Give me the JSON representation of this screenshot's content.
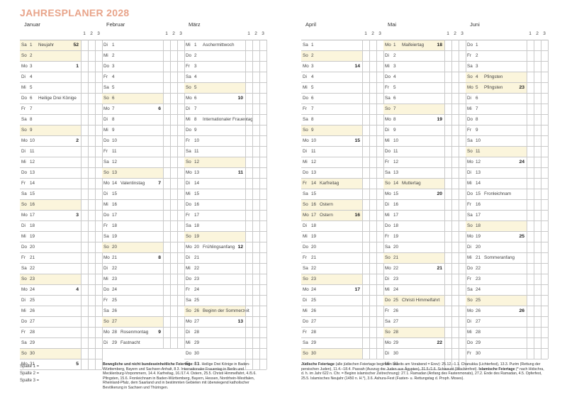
{
  "title": "JAHRESPLANER 2028",
  "col_headers": [
    "1",
    "2",
    "3"
  ],
  "months": [
    {
      "name": "Januar",
      "days": [
        {
          "wd": "Sa",
          "d": "1",
          "ev": "Neujahr",
          "kw": "52",
          "hl": true
        },
        {
          "wd": "So",
          "d": "2",
          "hl": true
        },
        {
          "wd": "Mo",
          "d": "3",
          "kw": "1"
        },
        {
          "wd": "Di",
          "d": "4"
        },
        {
          "wd": "Mi",
          "d": "5"
        },
        {
          "wd": "Do",
          "d": "6",
          "ev": "Heilige Drei Könige"
        },
        {
          "wd": "Fr",
          "d": "7"
        },
        {
          "wd": "Sa",
          "d": "8"
        },
        {
          "wd": "So",
          "d": "9",
          "hl": true
        },
        {
          "wd": "Mo",
          "d": "10",
          "kw": "2"
        },
        {
          "wd": "Di",
          "d": "11"
        },
        {
          "wd": "Mi",
          "d": "12"
        },
        {
          "wd": "Do",
          "d": "13"
        },
        {
          "wd": "Fr",
          "d": "14"
        },
        {
          "wd": "Sa",
          "d": "15"
        },
        {
          "wd": "So",
          "d": "16",
          "hl": true
        },
        {
          "wd": "Mo",
          "d": "17",
          "kw": "3"
        },
        {
          "wd": "Di",
          "d": "18"
        },
        {
          "wd": "Mi",
          "d": "19"
        },
        {
          "wd": "Do",
          "d": "20"
        },
        {
          "wd": "Fr",
          "d": "21"
        },
        {
          "wd": "Sa",
          "d": "22"
        },
        {
          "wd": "So",
          "d": "23",
          "hl": true
        },
        {
          "wd": "Mo",
          "d": "24",
          "kw": "4"
        },
        {
          "wd": "Di",
          "d": "25"
        },
        {
          "wd": "Mi",
          "d": "26"
        },
        {
          "wd": "Do",
          "d": "27"
        },
        {
          "wd": "Fr",
          "d": "28"
        },
        {
          "wd": "Sa",
          "d": "29"
        },
        {
          "wd": "So",
          "d": "30",
          "hl": true
        },
        {
          "wd": "Mo",
          "d": "31",
          "kw": "5"
        }
      ]
    },
    {
      "name": "Februar",
      "days": [
        {
          "wd": "Di",
          "d": "1"
        },
        {
          "wd": "Mi",
          "d": "2"
        },
        {
          "wd": "Do",
          "d": "3"
        },
        {
          "wd": "Fr",
          "d": "4"
        },
        {
          "wd": "Sa",
          "d": "5"
        },
        {
          "wd": "So",
          "d": "6",
          "hl": true
        },
        {
          "wd": "Mo",
          "d": "7",
          "kw": "6"
        },
        {
          "wd": "Di",
          "d": "8"
        },
        {
          "wd": "Mi",
          "d": "9"
        },
        {
          "wd": "Do",
          "d": "10"
        },
        {
          "wd": "Fr",
          "d": "11"
        },
        {
          "wd": "Sa",
          "d": "12"
        },
        {
          "wd": "So",
          "d": "13",
          "hl": true
        },
        {
          "wd": "Mo",
          "d": "14",
          "ev": "Valentinstag",
          "kw": "7"
        },
        {
          "wd": "Di",
          "d": "15"
        },
        {
          "wd": "Mi",
          "d": "16"
        },
        {
          "wd": "Do",
          "d": "17"
        },
        {
          "wd": "Fr",
          "d": "18"
        },
        {
          "wd": "Sa",
          "d": "19"
        },
        {
          "wd": "So",
          "d": "20",
          "hl": true
        },
        {
          "wd": "Mo",
          "d": "21",
          "kw": "8"
        },
        {
          "wd": "Di",
          "d": "22"
        },
        {
          "wd": "Mi",
          "d": "23"
        },
        {
          "wd": "Do",
          "d": "24"
        },
        {
          "wd": "Fr",
          "d": "25"
        },
        {
          "wd": "Sa",
          "d": "26"
        },
        {
          "wd": "So",
          "d": "27",
          "hl": true
        },
        {
          "wd": "Mo",
          "d": "28",
          "ev": "Rosenmontag",
          "kw": "9"
        },
        {
          "wd": "Di",
          "d": "29",
          "ev": "Fastnacht"
        }
      ]
    },
    {
      "name": "März",
      "days": [
        {
          "wd": "Mi",
          "d": "1",
          "ev": "Aschermittwoch"
        },
        {
          "wd": "Do",
          "d": "2"
        },
        {
          "wd": "Fr",
          "d": "3"
        },
        {
          "wd": "Sa",
          "d": "4"
        },
        {
          "wd": "So",
          "d": "5",
          "hl": true
        },
        {
          "wd": "Mo",
          "d": "6",
          "kw": "10"
        },
        {
          "wd": "Di",
          "d": "7"
        },
        {
          "wd": "Mi",
          "d": "8",
          "ev": "Internationaler Frauentag"
        },
        {
          "wd": "Do",
          "d": "9"
        },
        {
          "wd": "Fr",
          "d": "10"
        },
        {
          "wd": "Sa",
          "d": "11"
        },
        {
          "wd": "So",
          "d": "12",
          "hl": true
        },
        {
          "wd": "Mo",
          "d": "13",
          "kw": "11"
        },
        {
          "wd": "Di",
          "d": "14"
        },
        {
          "wd": "Mi",
          "d": "15"
        },
        {
          "wd": "Do",
          "d": "16"
        },
        {
          "wd": "Fr",
          "d": "17"
        },
        {
          "wd": "Sa",
          "d": "18"
        },
        {
          "wd": "So",
          "d": "19",
          "hl": true
        },
        {
          "wd": "Mo",
          "d": "20",
          "ev": "Frühlingsanfang",
          "kw": "12"
        },
        {
          "wd": "Di",
          "d": "21"
        },
        {
          "wd": "Mi",
          "d": "22"
        },
        {
          "wd": "Do",
          "d": "23"
        },
        {
          "wd": "Fr",
          "d": "24"
        },
        {
          "wd": "Sa",
          "d": "25"
        },
        {
          "wd": "So",
          "d": "26",
          "ev": "Beginn der Sommerzeit",
          "hl": true
        },
        {
          "wd": "Mo",
          "d": "27",
          "kw": "13"
        },
        {
          "wd": "Di",
          "d": "28"
        },
        {
          "wd": "Mi",
          "d": "29"
        },
        {
          "wd": "Do",
          "d": "30"
        },
        {
          "wd": "Fr",
          "d": "31"
        }
      ]
    },
    {
      "name": "April",
      "days": [
        {
          "wd": "Sa",
          "d": "1"
        },
        {
          "wd": "So",
          "d": "2",
          "hl": true
        },
        {
          "wd": "Mo",
          "d": "3",
          "kw": "14"
        },
        {
          "wd": "Di",
          "d": "4"
        },
        {
          "wd": "Mi",
          "d": "5"
        },
        {
          "wd": "Do",
          "d": "6"
        },
        {
          "wd": "Fr",
          "d": "7"
        },
        {
          "wd": "Sa",
          "d": "8"
        },
        {
          "wd": "So",
          "d": "9",
          "hl": true
        },
        {
          "wd": "Mo",
          "d": "10",
          "kw": "15"
        },
        {
          "wd": "Di",
          "d": "11"
        },
        {
          "wd": "Mi",
          "d": "12"
        },
        {
          "wd": "Do",
          "d": "13"
        },
        {
          "wd": "Fr",
          "d": "14",
          "ev": "Karfreitag",
          "hl": true
        },
        {
          "wd": "Sa",
          "d": "15"
        },
        {
          "wd": "So",
          "d": "16",
          "ev": "Ostern",
          "hl": true
        },
        {
          "wd": "Mo",
          "d": "17",
          "ev": "Ostern",
          "kw": "16",
          "hl": true
        },
        {
          "wd": "Di",
          "d": "18"
        },
        {
          "wd": "Mi",
          "d": "19"
        },
        {
          "wd": "Do",
          "d": "20"
        },
        {
          "wd": "Fr",
          "d": "21"
        },
        {
          "wd": "Sa",
          "d": "22"
        },
        {
          "wd": "So",
          "d": "23",
          "hl": true
        },
        {
          "wd": "Mo",
          "d": "24",
          "kw": "17"
        },
        {
          "wd": "Di",
          "d": "25"
        },
        {
          "wd": "Mi",
          "d": "26"
        },
        {
          "wd": "Do",
          "d": "27"
        },
        {
          "wd": "Fr",
          "d": "28"
        },
        {
          "wd": "Sa",
          "d": "29"
        },
        {
          "wd": "So",
          "d": "30",
          "hl": true
        }
      ]
    },
    {
      "name": "Mai",
      "days": [
        {
          "wd": "Mo",
          "d": "1",
          "ev": "Maifeiertag",
          "kw": "18",
          "hl": true
        },
        {
          "wd": "Di",
          "d": "2"
        },
        {
          "wd": "Mi",
          "d": "3"
        },
        {
          "wd": "Do",
          "d": "4"
        },
        {
          "wd": "Fr",
          "d": "5"
        },
        {
          "wd": "Sa",
          "d": "6"
        },
        {
          "wd": "So",
          "d": "7",
          "hl": true
        },
        {
          "wd": "Mo",
          "d": "8",
          "kw": "19"
        },
        {
          "wd": "Di",
          "d": "9"
        },
        {
          "wd": "Mi",
          "d": "10"
        },
        {
          "wd": "Do",
          "d": "11"
        },
        {
          "wd": "Fr",
          "d": "12"
        },
        {
          "wd": "Sa",
          "d": "13"
        },
        {
          "wd": "So",
          "d": "14",
          "ev": "Muttertag",
          "hl": true
        },
        {
          "wd": "Mo",
          "d": "15",
          "kw": "20"
        },
        {
          "wd": "Di",
          "d": "16"
        },
        {
          "wd": "Mi",
          "d": "17"
        },
        {
          "wd": "Do",
          "d": "18"
        },
        {
          "wd": "Fr",
          "d": "19"
        },
        {
          "wd": "Sa",
          "d": "20"
        },
        {
          "wd": "So",
          "d": "21",
          "hl": true
        },
        {
          "wd": "Mo",
          "d": "22",
          "kw": "21"
        },
        {
          "wd": "Di",
          "d": "23"
        },
        {
          "wd": "Mi",
          "d": "24"
        },
        {
          "wd": "Do",
          "d": "25",
          "ev": "Christi Himmelfahrt",
          "hl": true
        },
        {
          "wd": "Fr",
          "d": "26"
        },
        {
          "wd": "Sa",
          "d": "27"
        },
        {
          "wd": "So",
          "d": "28",
          "hl": true
        },
        {
          "wd": "Mo",
          "d": "29",
          "kw": "22"
        },
        {
          "wd": "Di",
          "d": "30"
        },
        {
          "wd": "Mi",
          "d": "31"
        }
      ]
    },
    {
      "name": "Juni",
      "days": [
        {
          "wd": "Do",
          "d": "1"
        },
        {
          "wd": "Fr",
          "d": "2"
        },
        {
          "wd": "Sa",
          "d": "3"
        },
        {
          "wd": "So",
          "d": "4",
          "ev": "Pfingsten",
          "hl": true
        },
        {
          "wd": "Mo",
          "d": "5",
          "ev": "Pfingsten",
          "kw": "23",
          "hl": true
        },
        {
          "wd": "Di",
          "d": "6"
        },
        {
          "wd": "Mi",
          "d": "7"
        },
        {
          "wd": "Do",
          "d": "8"
        },
        {
          "wd": "Fr",
          "d": "9"
        },
        {
          "wd": "Sa",
          "d": "10"
        },
        {
          "wd": "So",
          "d": "11",
          "hl": true
        },
        {
          "wd": "Mo",
          "d": "12",
          "kw": "24"
        },
        {
          "wd": "Di",
          "d": "13"
        },
        {
          "wd": "Mi",
          "d": "14"
        },
        {
          "wd": "Do",
          "d": "15",
          "ev": "Fronleichnam"
        },
        {
          "wd": "Fr",
          "d": "16"
        },
        {
          "wd": "Sa",
          "d": "17"
        },
        {
          "wd": "So",
          "d": "18",
          "hl": true
        },
        {
          "wd": "Mo",
          "d": "19",
          "kw": "25"
        },
        {
          "wd": "Di",
          "d": "20"
        },
        {
          "wd": "Mi",
          "d": "21",
          "ev": "Sommeranfang"
        },
        {
          "wd": "Do",
          "d": "22"
        },
        {
          "wd": "Fr",
          "d": "23"
        },
        {
          "wd": "Sa",
          "d": "24"
        },
        {
          "wd": "So",
          "d": "25",
          "hl": true
        },
        {
          "wd": "Mo",
          "d": "26",
          "kw": "26"
        },
        {
          "wd": "Di",
          "d": "27"
        },
        {
          "wd": "Mi",
          "d": "28"
        },
        {
          "wd": "Do",
          "d": "29"
        },
        {
          "wd": "Fr",
          "d": "30"
        }
      ]
    }
  ],
  "spalte": [
    "Spalte 1 =",
    "Spalte 2 =",
    "Spalte 3 ="
  ],
  "footnote_left": {
    "heading": "Bewegliche und nicht bundeseinheitliche Feiertage:",
    "text": " 6.1. Heilige Drei Könige in Baden-Württemberg, Bayern und Sachsen-Anhalt, 8.3. Internationaler Frauentag in Berlin und Mecklenburg-Vorpommern, 14.4. Karfreitag, 16./17.4. Ostern, 25.5. Christi Himmelfahrt, 4./5.6. Pfingsten, 15.6. Fronleichnam in Baden-Württemberg, Bayern, Hessen, Nordrhein-Westfalen, Rheinland-Pfalz, dem Saarland und in bestimmten Gebieten mit überwiegend katholischer Bevölkerung in Sachsen und Thüringen."
  },
  "footnote_right": {
    "heading1": "Jüdische Feiertage",
    "text1": " (alle jüdischen Feiertage beginnen bereits am Vorabend = Erev): 25.12.–1.1. Chanukka (Lichterfest), 13.3. Purim (Rettung der persischen Juden), 11.4.–18.4. Passah (Auszug der Juden aus Ägypten), 31.5./1.6. Schawuot (Wochenfest).",
    "heading2": "Islamische Feiertage",
    "text2": " (* nach Hidschra, d. h. im Jahr 622 n. Chr. = Beginn islamischer Zeitrechnung): 27.1. Ramadan (Anfang des Fastenmonats), 27.2. Ende des Ramadan, 4.5. Opferfest, 25.5. Islamisches Neujahr (1450 n. H.*), 3.6. Ashura-Fest (Fasten- u. Rettungstag d. Proph. Moses)."
  }
}
